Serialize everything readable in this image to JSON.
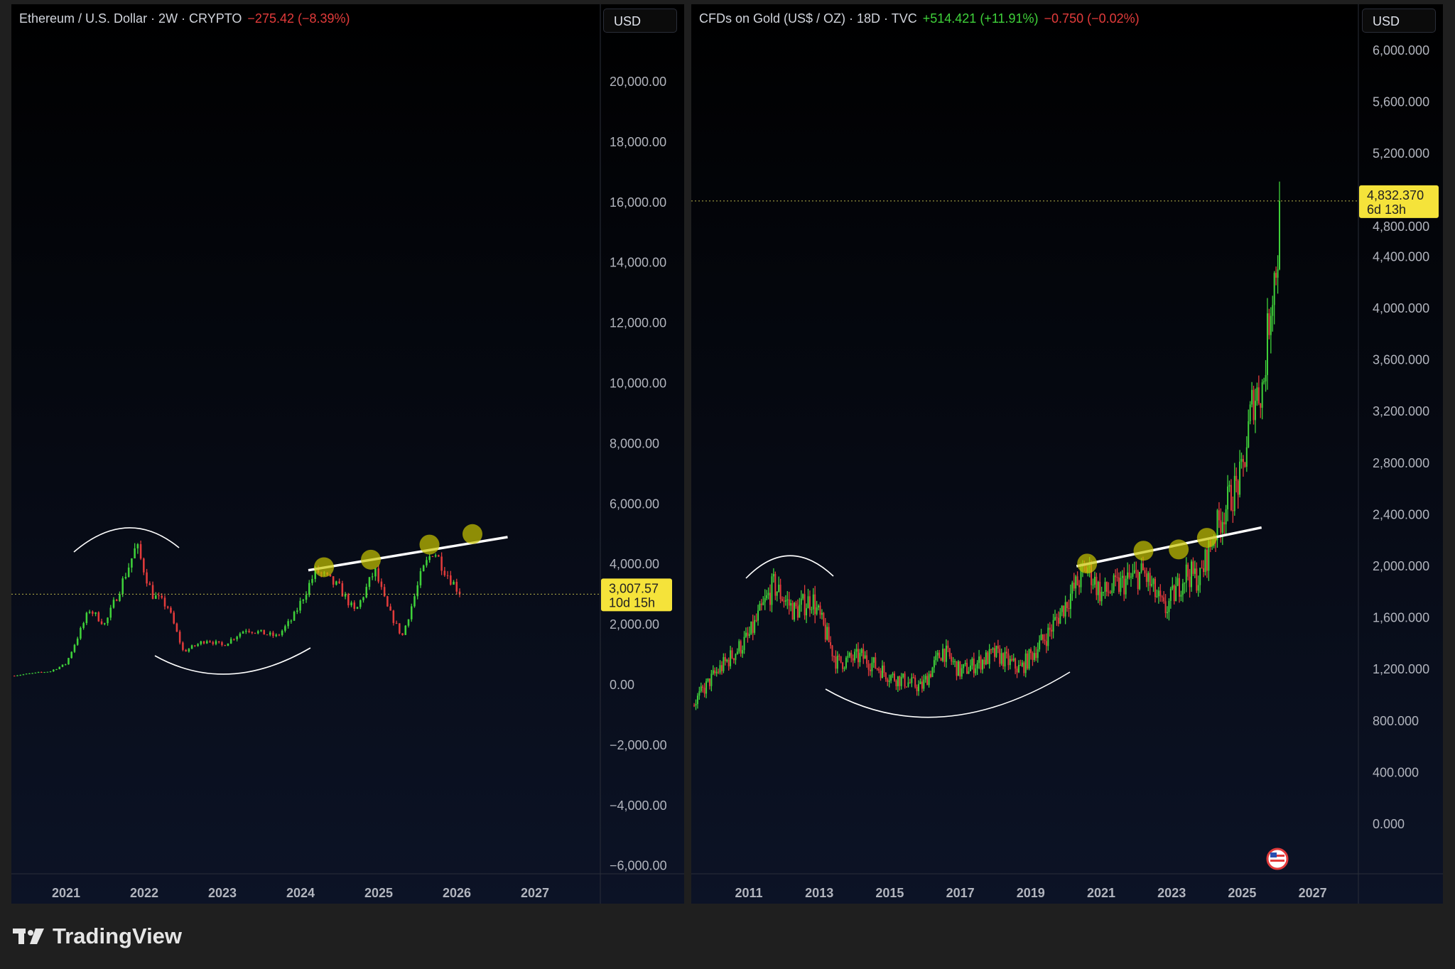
{
  "colors": {
    "up": "#3fd13a",
    "down": "#e23b3b",
    "marker": "#c8c400",
    "badge": "#f5e33a",
    "background": "#1f1f1f"
  },
  "chart_data": [
    {
      "type": "candlestick",
      "title": "Ethereum / U.S. Dollar · 2W · CRYPTO",
      "change": "−275.42 (−8.39%)",
      "currency": "USD",
      "last_price": "3,007.57",
      "countdown": "10d 15h",
      "last_value": 3007.57,
      "ylim": [
        -6000,
        21000
      ],
      "xlim": [
        2020.3,
        2027.8
      ],
      "y_ticks": [
        "20,000.00",
        "18,000.00",
        "16,000.00",
        "14,000.00",
        "12,000.00",
        "10,000.00",
        "8,000.00",
        "6,000.00",
        "4,000.00",
        "2,000.00",
        "0.00",
        "−2,000.00",
        "−4,000.00",
        "−6,000.00"
      ],
      "y_tick_values": [
        20000,
        18000,
        16000,
        14000,
        12000,
        10000,
        8000,
        6000,
        4000,
        2000,
        0,
        -2000,
        -4000,
        -6000
      ],
      "x_ticks": [
        "2021",
        "2022",
        "2023",
        "2024",
        "2025",
        "2026",
        "2027"
      ],
      "interval_years": 0.0385,
      "close_keypoints": [
        [
          2020.3,
          300
        ],
        [
          2020.8,
          450
        ],
        [
          2021.0,
          700
        ],
        [
          2021.3,
          2500
        ],
        [
          2021.5,
          2000
        ],
        [
          2021.75,
          3600
        ],
        [
          2021.9,
          4600
        ],
        [
          2022.1,
          3000
        ],
        [
          2022.3,
          2600
        ],
        [
          2022.5,
          1100
        ],
        [
          2022.8,
          1500
        ],
        [
          2023.0,
          1300
        ],
        [
          2023.3,
          1850
        ],
        [
          2023.7,
          1600
        ],
        [
          2023.9,
          2200
        ],
        [
          2024.2,
          3800
        ],
        [
          2024.5,
          3200
        ],
        [
          2024.7,
          2400
        ],
        [
          2024.95,
          3800
        ],
        [
          2025.1,
          2600
        ],
        [
          2025.3,
          1600
        ],
        [
          2025.55,
          3700
        ],
        [
          2025.7,
          4500
        ],
        [
          2025.85,
          3800
        ],
        [
          2026.05,
          3000
        ]
      ],
      "trendline": [
        [
          2024.1,
          3800
        ],
        [
          2026.65,
          4900
        ]
      ],
      "touch_points": [
        [
          2024.3,
          3900
        ],
        [
          2024.9,
          4150
        ],
        [
          2025.65,
          4650
        ],
        [
          2026.2,
          5000
        ]
      ],
      "arcs": [
        "rounded top 2020.7–2022.45",
        "rounded bottom 2021.75–2023.75"
      ]
    },
    {
      "type": "candlestick",
      "title": "CFDs on Gold (US$ / OZ) · 18D · TVC",
      "change": "+514.421 (+11.91%)",
      "change2": "−0.750 (−0.02%)",
      "currency": "USD",
      "last_price": "4,832.370",
      "countdown": "6d 13h",
      "last_value": 4832.37,
      "ylim": [
        -400,
        6100
      ],
      "xlim": [
        2009.4,
        2028.5
      ],
      "y_ticks": [
        "6,000.000",
        "5,600.000",
        "5,200.000",
        "4,800.000",
        "4,400.000",
        "4,000.000",
        "3,600.000",
        "3,200.000",
        "2,800.000",
        "2,400.000",
        "2,000.000",
        "1,600.000",
        "1,200.000",
        "800.000",
        "400.000",
        "0.000"
      ],
      "y_tick_values": [
        6000,
        5600,
        5200,
        4800,
        4400,
        4000,
        3600,
        3200,
        2800,
        2400,
        2000,
        1600,
        1200,
        800,
        400,
        0
      ],
      "x_ticks": [
        "2011",
        "2013",
        "2015",
        "2017",
        "2019",
        "2021",
        "2023",
        "2025",
        "2027"
      ],
      "interval_years": 0.049,
      "close_keypoints": [
        [
          2009.4,
          920
        ],
        [
          2010.0,
          1150
        ],
        [
          2011.0,
          1450
        ],
        [
          2011.7,
          1850
        ],
        [
          2012.3,
          1650
        ],
        [
          2012.8,
          1750
        ],
        [
          2013.5,
          1250
        ],
        [
          2014.2,
          1300
        ],
        [
          2015.0,
          1150
        ],
        [
          2015.9,
          1060
        ],
        [
          2016.5,
          1350
        ],
        [
          2017.0,
          1180
        ],
        [
          2018.0,
          1320
        ],
        [
          2018.7,
          1200
        ],
        [
          2019.5,
          1480
        ],
        [
          2020.6,
          2000
        ],
        [
          2021.0,
          1780
        ],
        [
          2022.2,
          1950
        ],
        [
          2022.8,
          1650
        ],
        [
          2023.4,
          1950
        ],
        [
          2023.8,
          1900
        ],
        [
          2024.2,
          2250
        ],
        [
          2024.6,
          2500
        ],
        [
          2025.0,
          2700
        ],
        [
          2025.3,
          3300
        ],
        [
          2025.6,
          3400
        ],
        [
          2025.8,
          4050
        ],
        [
          2026.0,
          4400
        ],
        [
          2026.1,
          4832
        ]
      ],
      "trendline": [
        [
          2020.3,
          2000
        ],
        [
          2025.55,
          2300
        ]
      ],
      "touch_points": [
        [
          2020.6,
          2020
        ],
        [
          2022.2,
          2120
        ],
        [
          2023.2,
          2130
        ],
        [
          2024.0,
          2220
        ]
      ],
      "arcs": [
        "rounded top 2010.6–2013.4",
        "rounded bottom 2013.3–2019.3"
      ]
    }
  ],
  "brand": {
    "name": "TradingView"
  },
  "icons": {
    "flag": "us-flag-icon",
    "logo": "tradingview-logo-icon"
  }
}
